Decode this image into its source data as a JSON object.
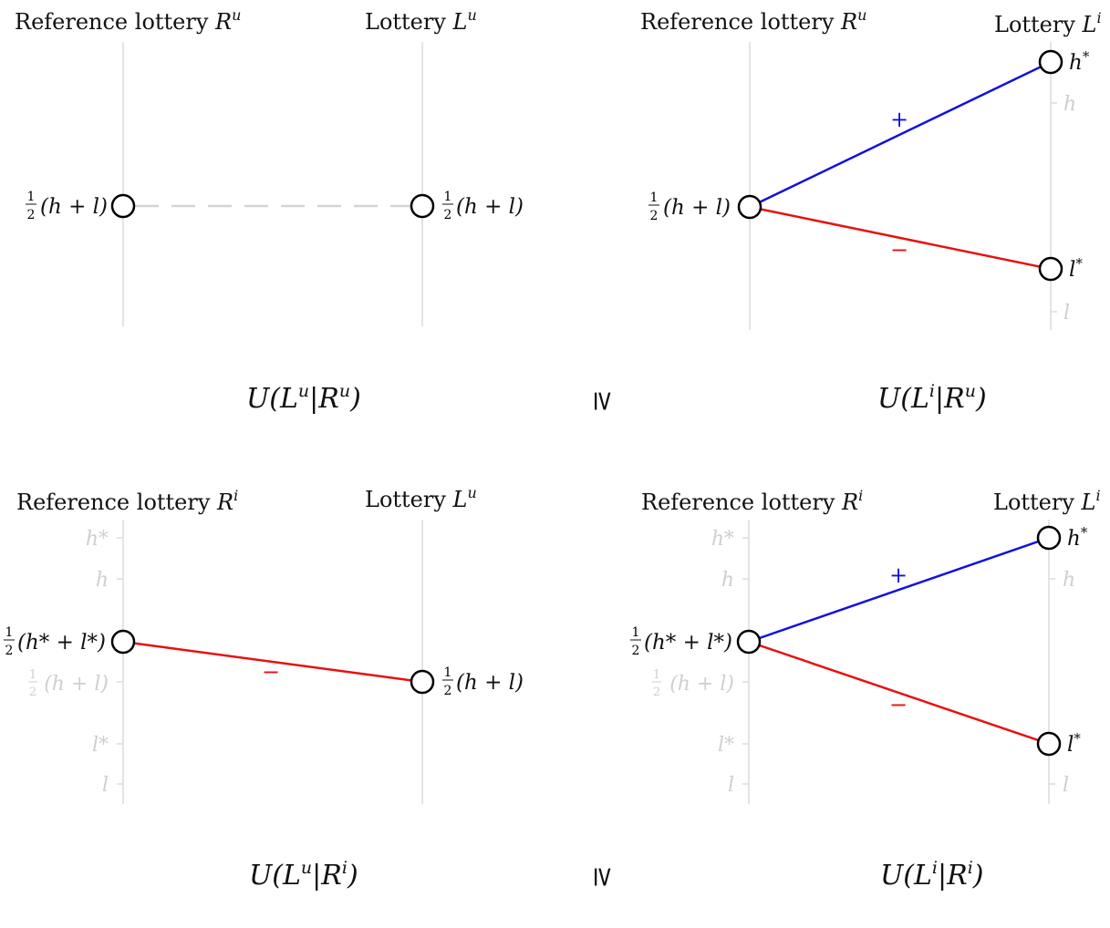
{
  "colors": {
    "plus": "#1010e0",
    "minus": "#e81010",
    "axis": "#dcdcdc",
    "ghost": "#cfcfcf",
    "neutral_line": "#d4d4d4"
  },
  "panels": {
    "top_left": {
      "ref_title_text": "Reference lottery ",
      "ref_title_var": "R",
      "ref_title_sup": "u",
      "lot_title_text": "Lottery ",
      "lot_title_var": "L",
      "lot_title_sup": "u",
      "ref_node_label": "(h + l)",
      "lot_node_label": "(h + l)",
      "formula": {
        "U": "U(",
        "L": "L",
        "Lsup": "u",
        "bar": "|",
        "R": "R",
        "Rsup": "u",
        "close": ")"
      }
    },
    "top_right": {
      "ref_title_text": "Reference lottery ",
      "ref_title_var": "R",
      "ref_title_sup": "u",
      "lot_title_text": "Lottery ",
      "lot_title_var": "L",
      "lot_title_sup": "i",
      "ref_node_label": "(h + l)",
      "high_label": "h",
      "high_sup": "*",
      "low_label": "l",
      "low_sup": "*",
      "ghost_h": "h",
      "ghost_l": "l",
      "plus": "+",
      "minus": "−",
      "formula": {
        "U": "U(",
        "L": "L",
        "Lsup": "i",
        "bar": "|",
        "R": "R",
        "Rsup": "u",
        "close": ")"
      }
    },
    "bottom_left": {
      "ref_title_text": "Reference lottery ",
      "ref_title_var": "R",
      "ref_title_sup": "i",
      "lot_title_text": "Lottery ",
      "lot_title_var": "L",
      "lot_title_sup": "u",
      "ref_node_label": "(h* + l*)",
      "lot_node_label": "(h + l)",
      "ghost_ticks": [
        "h*",
        "h",
        "(h + l)",
        "l*",
        "l"
      ],
      "minus": "−",
      "formula": {
        "U": "U(",
        "L": "L",
        "Lsup": "u",
        "bar": "|",
        "R": "R",
        "Rsup": "i",
        "close": ")"
      }
    },
    "bottom_right": {
      "ref_title_text": "Reference lottery ",
      "ref_title_var": "R",
      "ref_title_sup": "i",
      "lot_title_text": "Lottery ",
      "lot_title_var": "L",
      "lot_title_sup": "i",
      "ref_node_label": "(h* + l*)",
      "high_label": "h",
      "high_sup": "*",
      "low_label": "l",
      "low_sup": "*",
      "ghost_ticks": [
        "h*",
        "h",
        "(h + l)",
        "l*",
        "l"
      ],
      "ghost_right": [
        "h",
        "l"
      ],
      "plus": "+",
      "minus": "−",
      "formula": {
        "U": "U(",
        "L": "L",
        "Lsup": "i",
        "bar": "|",
        "R": "R",
        "Rsup": "i",
        "close": ")"
      }
    }
  },
  "half": {
    "num": "1",
    "den": "2"
  },
  "relations": [
    "≥",
    "≥"
  ]
}
